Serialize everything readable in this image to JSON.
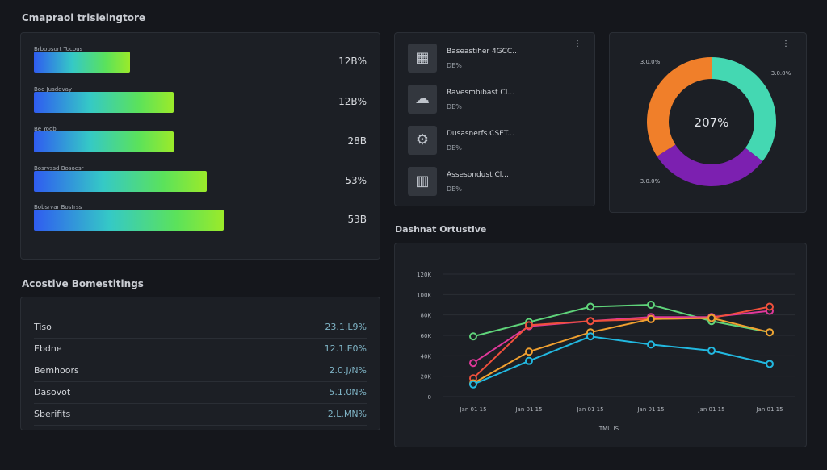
{
  "bars_section": {
    "title": "Cmapraol trislelngtore",
    "items": [
      {
        "label": "Brbobsort Tocous",
        "value": "12B%",
        "fill": 0.29
      },
      {
        "label": "Boo Jusdovay",
        "value": "12B%",
        "fill": 0.42
      },
      {
        "label": "Be Yoob",
        "value": "28B",
        "fill": 0.42
      },
      {
        "label": "Bosrvssd Bosoesr",
        "value": "53%",
        "fill": 0.52
      },
      {
        "label": "Bobsrvar Bostrss",
        "value": "53B",
        "fill": 0.57
      }
    ]
  },
  "table_section": {
    "title": "Acostive Bomestitings",
    "rows": [
      {
        "name": "Tiso",
        "value": "23.1.L9%"
      },
      {
        "name": "Ebdne",
        "value": "12.1.E0%"
      },
      {
        "name": "Bemhoors",
        "value": "2.0.J/N%"
      },
      {
        "name": "Dasovot",
        "value": "5.1.0N%"
      },
      {
        "name": "Sberifits",
        "value": "2.L.MN%"
      }
    ]
  },
  "list_card": {
    "menu_icon": "more-icon",
    "items": [
      {
        "icon": "grid-icon",
        "title": "Baseastiher 4GCC...",
        "sub": "DE%"
      },
      {
        "icon": "cloud-icon",
        "title": "Ravesmbibast CI...",
        "sub": "DE%"
      },
      {
        "icon": "gear-icon",
        "title": "Dusasnerfs.CSET...",
        "sub": "DE%"
      },
      {
        "icon": "chart-icon",
        "title": "Assesondust Cl...",
        "sub": "DE%"
      }
    ]
  },
  "donut": {
    "center_label": "207%",
    "labels": [
      "3.0.0%",
      "3.0.0%",
      "3.0.0%"
    ],
    "segments": [
      {
        "value": 35.5,
        "color": "#44d8b2"
      },
      {
        "value": 30.5,
        "color": "#7c20b0"
      },
      {
        "value": 34,
        "color": "#f07f2a"
      }
    ]
  },
  "line_section": {
    "title": "Dashnat Ortustive"
  },
  "chart_data": {
    "type": "line",
    "xlabel": "TMU IS",
    "ylabel": "",
    "categories": [
      "Jan 01 15",
      "Jan 01 15",
      "Jan 01 15",
      "Jan 01 15",
      "Jan 01 15",
      "Jan 01 15"
    ],
    "yticks": [
      "0",
      "20K",
      "40K",
      "60K",
      "80K",
      "100K",
      "120K"
    ],
    "ylim": [
      0,
      120
    ],
    "grid": true,
    "series": [
      {
        "color": "#5fd47a",
        "values": [
          59,
          73,
          88,
          90,
          74,
          63
        ]
      },
      {
        "color": "#e0389a",
        "values": [
          33,
          69,
          74,
          78,
          78,
          84
        ]
      },
      {
        "color": "#f0503c",
        "values": [
          18,
          70,
          74,
          76,
          77,
          88
        ]
      },
      {
        "color": "#f0a030",
        "values": [
          13,
          44,
          63,
          76,
          77,
          63
        ]
      },
      {
        "color": "#22b8e0",
        "values": [
          12,
          35,
          59,
          51,
          45,
          32
        ]
      }
    ]
  }
}
